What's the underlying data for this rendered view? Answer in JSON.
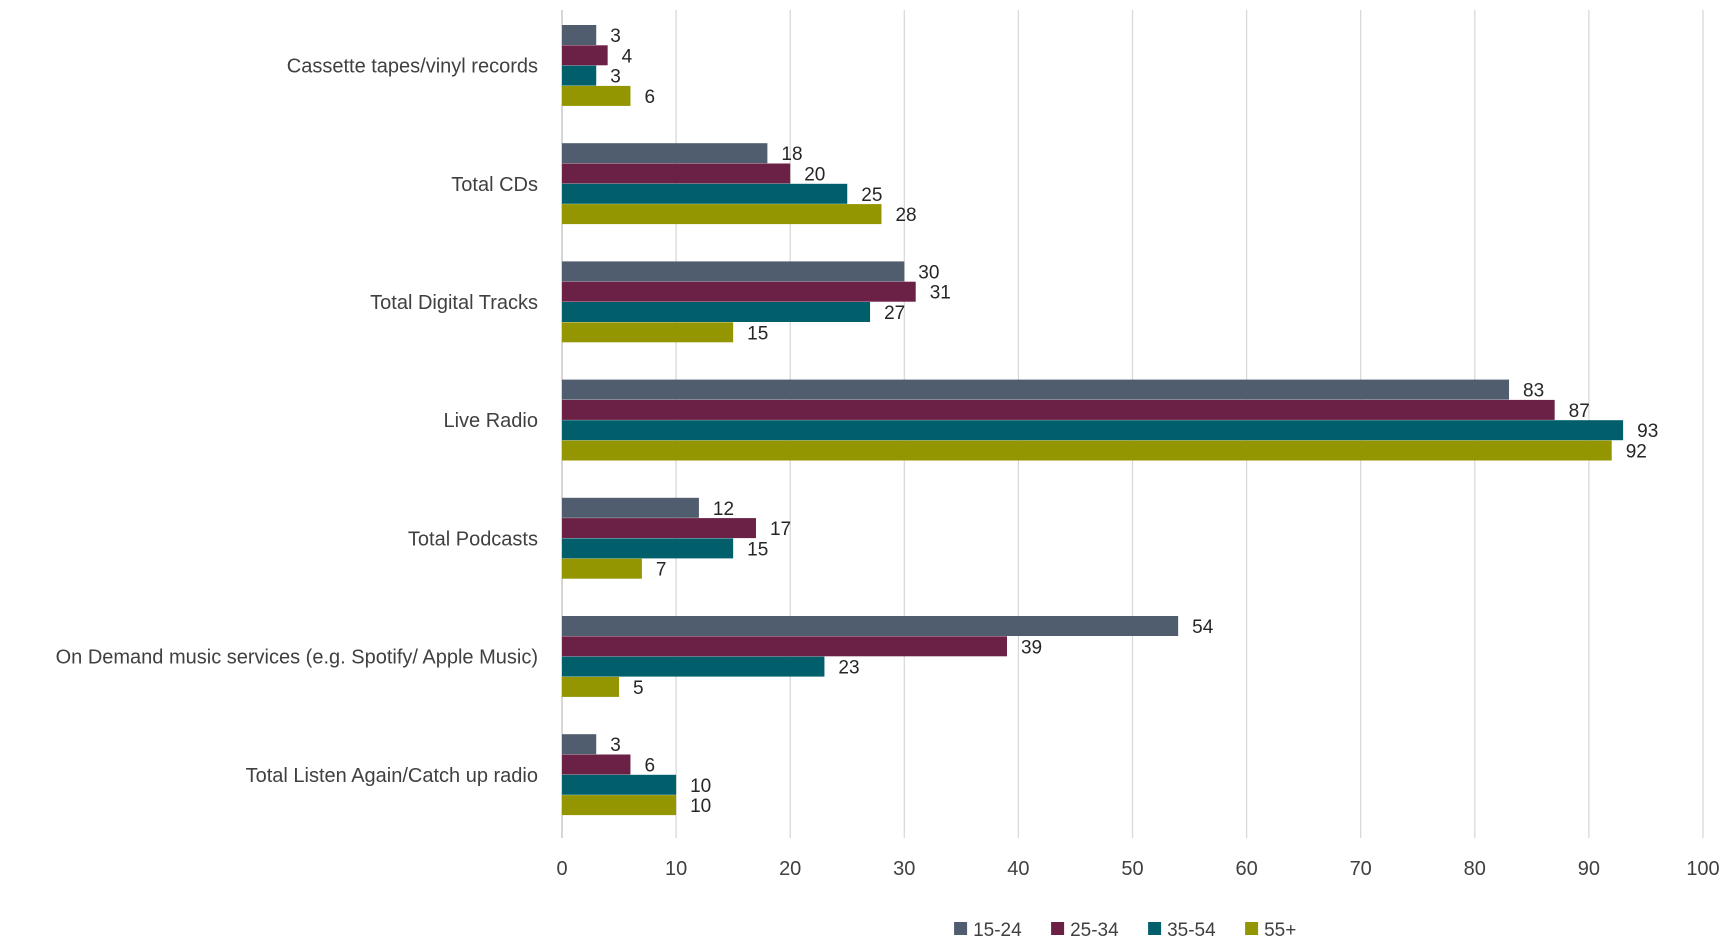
{
  "chart_data": {
    "type": "bar",
    "orientation": "horizontal",
    "categories": [
      "Cassette tapes/vinyl records",
      "Total CDs",
      "Total Digital Tracks",
      "Live Radio",
      "Total Podcasts",
      "On Demand music services (e.g. Spotify/ Apple Music)",
      "Total Listen Again/Catch up radio"
    ],
    "series": [
      {
        "name": "15-24",
        "color": "#4f5d6f",
        "values": [
          3,
          18,
          30,
          83,
          12,
          54,
          3
        ]
      },
      {
        "name": "25-34",
        "color": "#6b2045",
        "values": [
          4,
          20,
          31,
          87,
          17,
          39,
          6
        ]
      },
      {
        "name": "35-54",
        "color": "#005f6b",
        "values": [
          3,
          25,
          27,
          93,
          15,
          23,
          10
        ]
      },
      {
        "name": "55+",
        "color": "#939600",
        "values": [
          6,
          28,
          15,
          92,
          7,
          5,
          10
        ]
      }
    ],
    "xlim": [
      0,
      100
    ],
    "xticks": [
      "0",
      "10",
      "20",
      "30",
      "40",
      "50",
      "60",
      "70",
      "80",
      "90",
      "100"
    ],
    "grid": true,
    "legend_position": "bottom",
    "data_labels": true
  }
}
